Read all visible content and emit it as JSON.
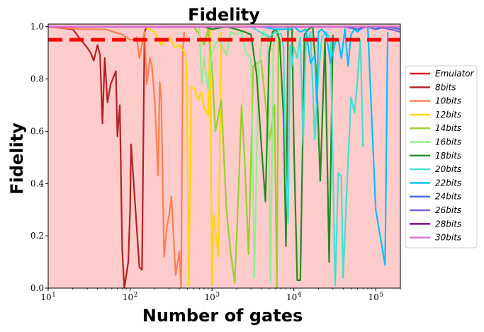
{
  "chart_data": {
    "type": "line",
    "title": "Fidelity",
    "xlabel": "Number of gates",
    "ylabel": "Fidelity",
    "x_scale": "log",
    "xlim": [
      10,
      200000
    ],
    "ylim": [
      0,
      1.01
    ],
    "x_ticks": [
      {
        "value": 10,
        "label": "10",
        "exp": "1"
      },
      {
        "value": 100,
        "label": "10",
        "exp": "2"
      },
      {
        "value": 1000,
        "label": "10",
        "exp": "3"
      },
      {
        "value": 10000,
        "label": "10",
        "exp": "4"
      },
      {
        "value": 100000,
        "label": "10",
        "exp": "5"
      }
    ],
    "y_ticks": [
      {
        "value": 0,
        "label": "0.0"
      },
      {
        "value": 0.2,
        "label": "0.2"
      },
      {
        "value": 0.4,
        "label": "0.4"
      },
      {
        "value": 0.6,
        "label": "0.6"
      },
      {
        "value": 0.8,
        "label": "0.8"
      },
      {
        "value": 1.0,
        "label": "1.0"
      }
    ],
    "threshold": 0.95,
    "threshold_color": "#ff0000",
    "shade_color": "#ffcccc",
    "grid": false,
    "legend_position": "right",
    "series": [
      {
        "name": "Emulator",
        "color": "#e8141c",
        "x": [
          10,
          200000
        ],
        "y": [
          1.0,
          1.0
        ]
      },
      {
        "name": "8bits",
        "color": "#b22222",
        "x": [
          10,
          20,
          25,
          30,
          33,
          36,
          40,
          43,
          46,
          49,
          53,
          58,
          67,
          70,
          75,
          80,
          85,
          90,
          95,
          100,
          103,
          130,
          140,
          150,
          160,
          170
        ],
        "y": [
          1.0,
          0.99,
          0.95,
          0.92,
          0.9,
          0.87,
          0.93,
          0.89,
          0.63,
          0.88,
          0.71,
          0.78,
          0.83,
          0.58,
          0.7,
          0.15,
          0.0,
          0.05,
          0.1,
          0.3,
          0.55,
          0.08,
          0.07,
          0.98,
          1.0,
          1.0
        ]
      },
      {
        "name": "10bits",
        "color": "#ff7f50",
        "x": [
          10,
          25,
          50,
          80,
          100,
          110,
          120,
          130,
          150,
          160,
          175,
          185,
          200,
          220,
          230,
          240,
          260,
          280,
          300,
          320,
          360,
          400,
          420,
          440,
          460
        ],
        "y": [
          1.0,
          0.99,
          0.99,
          0.97,
          0.95,
          0.95,
          0.96,
          0.88,
          0.98,
          0.78,
          0.88,
          0.85,
          0.72,
          0.43,
          0.79,
          0.73,
          0.12,
          0.23,
          0.28,
          0.35,
          0.05,
          0.14,
          0.0,
          0.9,
          0.98
        ]
      },
      {
        "name": "12bits",
        "color": "#ffd700",
        "x": [
          60,
          150,
          200,
          240,
          300,
          350,
          400,
          470,
          490,
          520,
          560,
          620,
          680,
          740,
          800,
          900,
          950,
          1000,
          1050,
          1200,
          1300
        ],
        "y": [
          1.0,
          1.0,
          0.98,
          0.93,
          0.96,
          0.92,
          0.93,
          0.9,
          0.85,
          0.01,
          0.77,
          0.76,
          0.72,
          0.75,
          0.69,
          0.66,
          0.99,
          0.01,
          0.28,
          0.12,
          0.98
        ]
      },
      {
        "name": "14bits",
        "color": "#9acd32",
        "x": [
          300,
          600,
          700,
          800,
          900,
          1000,
          1100,
          1300,
          1500,
          1700,
          1900,
          2100,
          2300,
          2500,
          2800,
          3200,
          4000,
          5000,
          5800,
          6200,
          6500
        ],
        "y": [
          1.0,
          1.0,
          0.97,
          0.93,
          0.99,
          0.85,
          0.6,
          0.72,
          0.3,
          0.13,
          0.02,
          0.35,
          0.7,
          0.5,
          0.13,
          0.85,
          0.87,
          0.56,
          0.7,
          0.0,
          0.98
        ]
      },
      {
        "name": "16bits",
        "color": "#90ee90",
        "x": [
          700,
          750,
          800,
          900,
          1000,
          1200,
          1500,
          1700,
          2000,
          2300,
          2600,
          3000,
          3300,
          3700,
          4200,
          4800,
          5200,
          5600,
          6000,
          6400,
          7000
        ],
        "y": [
          1.0,
          0.78,
          0.88,
          0.76,
          0.9,
          0.96,
          0.89,
          0.98,
          0.97,
          0.98,
          0.9,
          0.88,
          0.04,
          0.85,
          0.98,
          0.97,
          0.02,
          0.92,
          0.96,
          0.98,
          1.0
        ]
      },
      {
        "name": "18bits",
        "color": "#228b22",
        "x": [
          800,
          1000,
          1500,
          2000,
          2500,
          3000,
          3500,
          4000,
          4500,
          5000,
          5500,
          6000,
          6700,
          7500,
          8000,
          8500,
          9500,
          10000,
          11000,
          12000,
          13500,
          15000,
          17000,
          19000,
          21000,
          24000,
          27000,
          30000
        ],
        "y": [
          1.0,
          0.99,
          1.0,
          0.99,
          0.98,
          0.97,
          0.82,
          0.55,
          0.33,
          0.9,
          0.98,
          0.99,
          0.95,
          0.65,
          0.16,
          1.0,
          1.0,
          0.55,
          0.03,
          0.03,
          0.97,
          0.99,
          1.0,
          0.8,
          0.41,
          0.95,
          0.1,
          0.97
        ]
      },
      {
        "name": "20bits",
        "color": "#40e0d0",
        "x": [
          3000,
          5000,
          6000,
          7000,
          7500,
          8000,
          8500,
          9000,
          9500,
          10000,
          11000,
          12000,
          13000,
          14000,
          16000,
          18000,
          20000,
          22000,
          25000,
          28000,
          32000,
          35000,
          38000,
          40000,
          45000,
          50000,
          55000,
          60000,
          65000,
          70000
        ],
        "y": [
          1.0,
          0.96,
          0.98,
          0.97,
          0.92,
          0.42,
          0.25,
          0.93,
          0.85,
          0.92,
          0.88,
          0.96,
          0.55,
          0.93,
          0.98,
          0.57,
          0.82,
          0.96,
          0.98,
          0.95,
          0.01,
          0.44,
          0.43,
          0.04,
          0.42,
          0.73,
          0.67,
          0.8,
          0.95,
          0.54
        ]
      },
      {
        "name": "22bits",
        "color": "#00bfff",
        "x": [
          4000,
          6000,
          9000,
          10000,
          12000,
          14000,
          16000,
          18000,
          19000,
          20000,
          22000,
          25000,
          28000,
          32000,
          35000,
          38000,
          42000,
          46000,
          50000,
          55000,
          60000,
          70000,
          80000,
          100000,
          130000,
          140000
        ],
        "y": [
          1.0,
          0.99,
          0.99,
          1.0,
          0.98,
          0.99,
          0.86,
          0.89,
          0.71,
          0.98,
          0.99,
          0.97,
          0.86,
          0.94,
          0.95,
          0.88,
          0.99,
          0.85,
          0.97,
          0.99,
          0.98,
          1.0,
          1.0,
          0.3,
          0.09,
          0.98
        ]
      },
      {
        "name": "24bits",
        "color": "#4169e1",
        "x": [
          40000,
          60000,
          80000,
          100000,
          130000,
          200000
        ],
        "y": [
          1.0,
          0.99,
          1.0,
          0.99,
          1.0,
          0.99
        ]
      },
      {
        "name": "26bits",
        "color": "#7b5fcf",
        "x": [
          10,
          100,
          1000,
          10000,
          100000,
          150000,
          200000
        ],
        "y": [
          1.0,
          1.0,
          1.0,
          1.0,
          1.0,
          0.99,
          0.98
        ]
      },
      {
        "name": "28bits",
        "color": "#800080",
        "x": [
          10,
          200000
        ],
        "y": [
          1.0,
          1.0
        ]
      },
      {
        "name": "30bits",
        "color": "#da70d6",
        "x": [
          10,
          200000
        ],
        "y": [
          1.0,
          1.0
        ]
      }
    ]
  }
}
